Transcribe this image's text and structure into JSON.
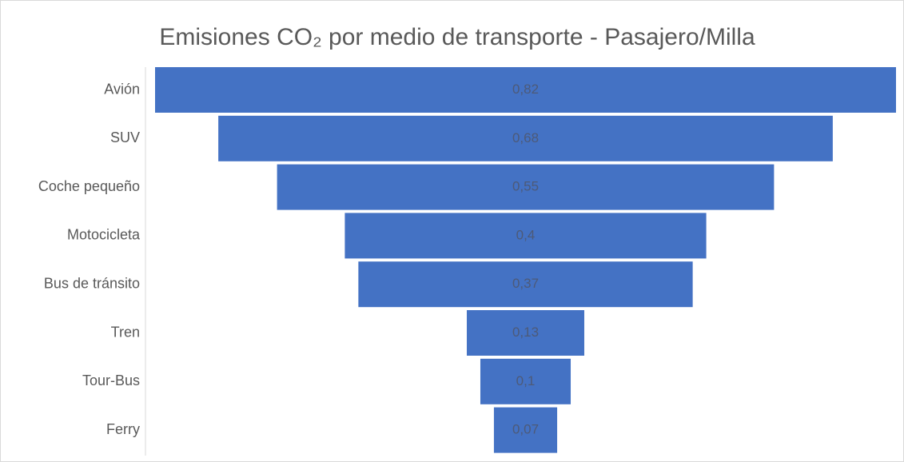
{
  "chart_data": {
    "type": "funnel",
    "title": "Emisiones CO₂ por medio de transporte - Pasajero/Milla",
    "categories": [
      "Avión",
      "SUV",
      "Coche pequeño",
      "Motocicleta",
      "Bus de tránsito",
      "Tren",
      "Tour-Bus",
      "Ferry"
    ],
    "values": [
      0.82,
      0.68,
      0.55,
      0.4,
      0.37,
      0.13,
      0.1,
      0.07
    ],
    "value_labels": [
      "0,82",
      "0,68",
      "0,55",
      "0,4",
      "0,37",
      "0,13",
      "0,1",
      "0,07"
    ],
    "color": "#4472c4"
  }
}
